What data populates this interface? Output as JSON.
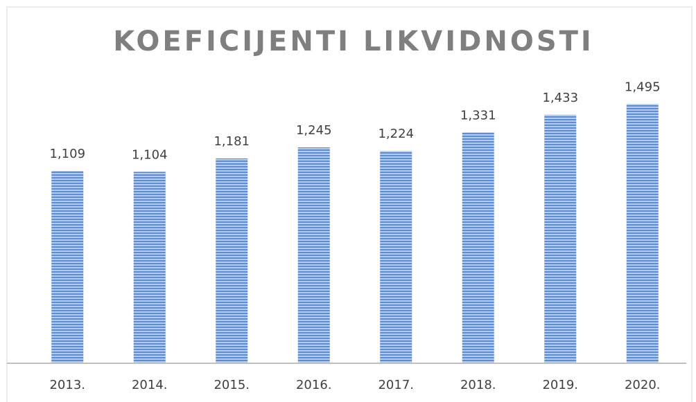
{
  "chart_data": {
    "type": "bar",
    "title": "KOEFICIJENTI LIKVIDNOSTI",
    "categories": [
      "2013.",
      "2014.",
      "2015.",
      "2016.",
      "2017.",
      "2018.",
      "2019.",
      "2020."
    ],
    "values": [
      1.109,
      1.104,
      1.181,
      1.245,
      1.224,
      1.331,
      1.433,
      1.495
    ],
    "value_labels": [
      "1,109",
      "1,104",
      "1,181",
      "1,245",
      "1,224",
      "1,331",
      "1,433",
      "1,495"
    ],
    "color": "#5b8bd0",
    "ylim": [
      0,
      1.6
    ]
  }
}
